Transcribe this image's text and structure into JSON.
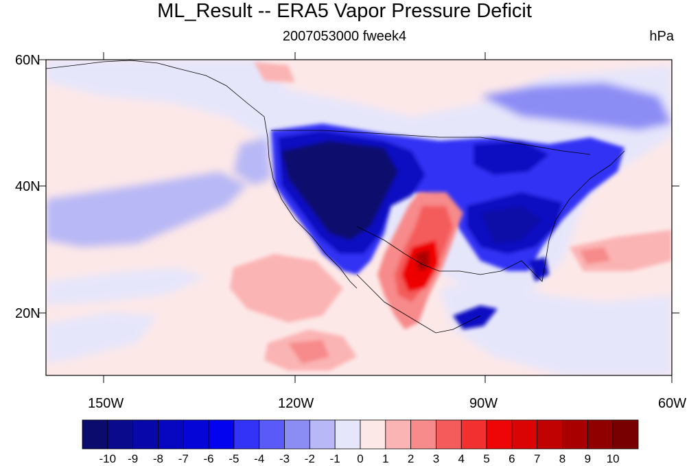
{
  "title": "ML_Result -- ERA5 Vapor Pressure Deficit",
  "subtitle": "2007053000 fweek4",
  "units": "hPa",
  "lat_labels": [
    "60N",
    "40N",
    "20N"
  ],
  "lon_labels": [
    "150W",
    "120W",
    "90W",
    "60W"
  ],
  "colorbar": {
    "labels": [
      "-10",
      "-9",
      "-8",
      "-7",
      "-6",
      "-5",
      "-4",
      "-3",
      "-2",
      "-1",
      "0",
      "1",
      "2",
      "3",
      "4",
      "5",
      "6",
      "7",
      "8",
      "9",
      "10"
    ],
    "colors": [
      "#0b0b6e",
      "#0a0a8c",
      "#0808a8",
      "#0707c2",
      "#0505d8",
      "#0303f0",
      "#3333f5",
      "#5a5af8",
      "#8c8cf5",
      "#b8b8f6",
      "#e6e6fb",
      "#fde8e8",
      "#fbb4b4",
      "#f78a8a",
      "#f45c5c",
      "#f23030",
      "#ee0606",
      "#da0404",
      "#c00202",
      "#a80000",
      "#900000",
      "#780000"
    ]
  },
  "map_extent": {
    "lon_min": -160,
    "lon_max": -60,
    "lat_min": 10,
    "lat_max": 60
  },
  "colors": {
    "background": "#ffffff",
    "land_outline": "#000000"
  }
}
